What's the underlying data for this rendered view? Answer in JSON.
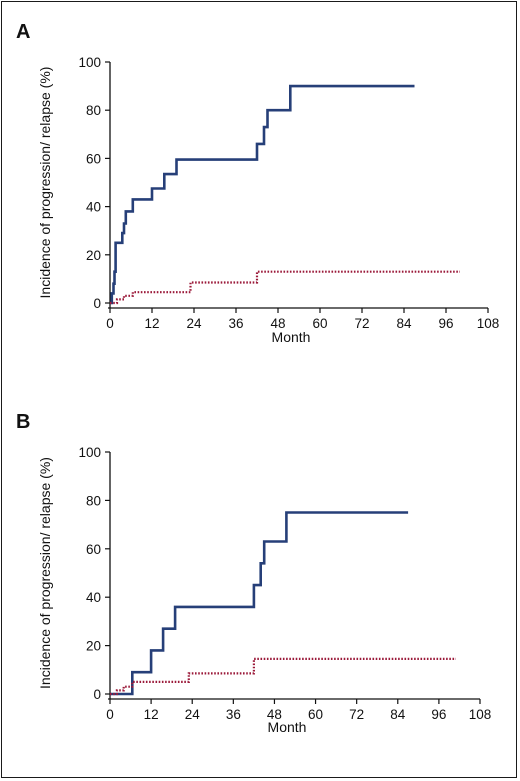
{
  "chart_data": [
    {
      "type": "line",
      "panel_label": "A",
      "xlabel": "Month",
      "ylabel": "Incidence of progression/ relapse (%)",
      "xlim": [
        0,
        108
      ],
      "ylim": [
        0,
        100
      ],
      "xticks": [
        0,
        12,
        24,
        36,
        48,
        60,
        72,
        84,
        96,
        108
      ],
      "yticks": [
        0,
        20,
        40,
        60,
        80,
        100
      ],
      "grid": false,
      "series": [
        {
          "style": "solid",
          "color": "#263f78",
          "points": [
            [
              0,
              0
            ],
            [
              0.5,
              0
            ],
            [
              0.5,
              4
            ],
            [
              1,
              4
            ],
            [
              1,
              8
            ],
            [
              1.3,
              8
            ],
            [
              1.3,
              13
            ],
            [
              1.6,
              13
            ],
            [
              1.6,
              25
            ],
            [
              3.5,
              25
            ],
            [
              3.5,
              29
            ],
            [
              4,
              29
            ],
            [
              4,
              33
            ],
            [
              4.5,
              33
            ],
            [
              4.5,
              38
            ],
            [
              6.5,
              38
            ],
            [
              6.5,
              43
            ],
            [
              12,
              43
            ],
            [
              12,
              47.5
            ],
            [
              15.5,
              47.5
            ],
            [
              15.5,
              53.5
            ],
            [
              19,
              53.5
            ],
            [
              19,
              59.5
            ],
            [
              42,
              59.5
            ],
            [
              42,
              66
            ],
            [
              44,
              66
            ],
            [
              44,
              73
            ],
            [
              45,
              73
            ],
            [
              45,
              80
            ],
            [
              51.5,
              80
            ],
            [
              51.5,
              90
            ],
            [
              87,
              90
            ]
          ]
        },
        {
          "style": "dotted",
          "color": "#9b1a3a",
          "points": [
            [
              0,
              0
            ],
            [
              2,
              0
            ],
            [
              2,
              1.5
            ],
            [
              4,
              1.5
            ],
            [
              4,
              3
            ],
            [
              6.5,
              3
            ],
            [
              6.5,
              4.5
            ],
            [
              23,
              4.5
            ],
            [
              23,
              8.5
            ],
            [
              42,
              8.5
            ],
            [
              42,
              13
            ],
            [
              100,
              13
            ]
          ]
        }
      ]
    },
    {
      "type": "line",
      "panel_label": "B",
      "xlabel": "Month",
      "ylabel": "Incidence of progression/ relapse (%)",
      "xlim": [
        0,
        108
      ],
      "ylim": [
        0,
        100
      ],
      "xticks": [
        0,
        12,
        24,
        36,
        48,
        60,
        72,
        84,
        96,
        108
      ],
      "yticks": [
        0,
        20,
        40,
        60,
        80,
        100
      ],
      "grid": false,
      "series": [
        {
          "style": "solid",
          "color": "#263f78",
          "points": [
            [
              0,
              0
            ],
            [
              6.5,
              0
            ],
            [
              6.5,
              9
            ],
            [
              12,
              9
            ],
            [
              12,
              18
            ],
            [
              15.5,
              18
            ],
            [
              15.5,
              27
            ],
            [
              19,
              27
            ],
            [
              19,
              36
            ],
            [
              42,
              36
            ],
            [
              42,
              45
            ],
            [
              44,
              45
            ],
            [
              44,
              54
            ],
            [
              45,
              54
            ],
            [
              45,
              63
            ],
            [
              51.5,
              63
            ],
            [
              51.5,
              75
            ],
            [
              87,
              75
            ]
          ]
        },
        {
          "style": "dotted",
          "color": "#9b1a3a",
          "points": [
            [
              0,
              0
            ],
            [
              2,
              0
            ],
            [
              2,
              1.5
            ],
            [
              4,
              1.5
            ],
            [
              4,
              3
            ],
            [
              6.5,
              3
            ],
            [
              6.5,
              5
            ],
            [
              23,
              5
            ],
            [
              23,
              8.5
            ],
            [
              42,
              8.5
            ],
            [
              42,
              14.5
            ],
            [
              101,
              14.5
            ]
          ]
        }
      ]
    }
  ]
}
